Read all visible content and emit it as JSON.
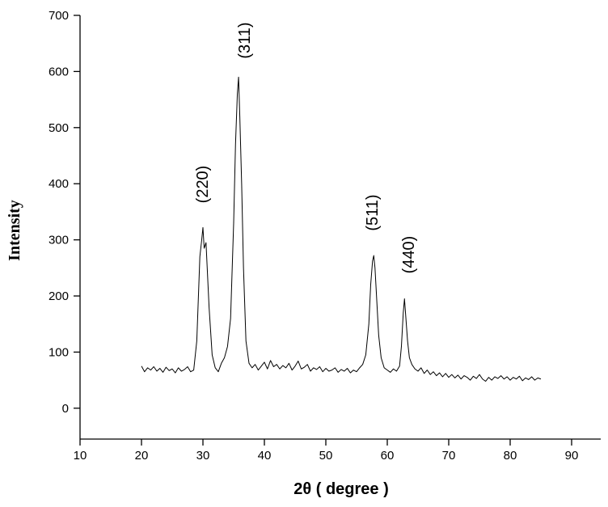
{
  "chart_data": {
    "type": "line",
    "xlabel": "2θ ( degree )",
    "ylabel": "Intensity",
    "annotations": [
      "(220)",
      "(311)",
      "(511)",
      "(440)"
    ],
    "xlim": [
      10,
      95
    ],
    "xticks": [
      10,
      20,
      30,
      40,
      50,
      60,
      70,
      80,
      90
    ],
    "ylim": [
      -55,
      700
    ],
    "yticks": [
      0,
      100,
      200,
      300,
      400,
      500,
      600,
      700
    ],
    "x": [
      20,
      20.5,
      21,
      21.5,
      22,
      22.5,
      23,
      23.5,
      24,
      24.5,
      25,
      25.5,
      26,
      26.5,
      27,
      27.5,
      28,
      28.5,
      29,
      29.5,
      29.8,
      30,
      30.2,
      30.5,
      31,
      31.5,
      32,
      32.5,
      33,
      33.5,
      34,
      34.5,
      35,
      35.3,
      35.6,
      35.8,
      36,
      36.3,
      36.6,
      37,
      37.5,
      38,
      38.5,
      39,
      39.5,
      40,
      40.5,
      41,
      41.5,
      42,
      42.5,
      43,
      43.5,
      44,
      44.5,
      45,
      45.5,
      46,
      46.5,
      47,
      47.5,
      48,
      48.5,
      49,
      49.5,
      50,
      50.5,
      51,
      51.5,
      52,
      52.5,
      53,
      53.5,
      54,
      54.5,
      55,
      55.5,
      56,
      56.5,
      57,
      57.3,
      57.6,
      57.8,
      58,
      58.3,
      58.6,
      59,
      59.5,
      60,
      60.5,
      61,
      61.5,
      62,
      62.3,
      62.6,
      62.8,
      63,
      63.3,
      63.6,
      64,
      64.5,
      65,
      65.5,
      66,
      66.5,
      67,
      67.5,
      68,
      68.5,
      69,
      69.5,
      70,
      70.5,
      71,
      71.5,
      72,
      72.5,
      73,
      73.5,
      74,
      74.5,
      75,
      75.5,
      76,
      76.5,
      77,
      77.5,
      78,
      78.5,
      79,
      79.5,
      80,
      80.5,
      81,
      81.5,
      82,
      82.5,
      83,
      83.5,
      84,
      84.5,
      85
    ],
    "series": [
      {
        "color": "#000000",
        "values": [
          75,
          65,
          72,
          68,
          74,
          66,
          71,
          64,
          73,
          67,
          70,
          63,
          72,
          66,
          69,
          74,
          65,
          68,
          120,
          270,
          300,
          322,
          285,
          295,
          180,
          95,
          72,
          65,
          80,
          90,
          110,
          160,
          330,
          470,
          560,
          590,
          520,
          400,
          250,
          120,
          80,
          72,
          78,
          68,
          75,
          82,
          70,
          85,
          74,
          78,
          70,
          76,
          72,
          80,
          68,
          75,
          84,
          70,
          73,
          78,
          66,
          72,
          69,
          74,
          65,
          71,
          66,
          68,
          72,
          64,
          69,
          66,
          71,
          63,
          68,
          65,
          72,
          78,
          95,
          150,
          220,
          262,
          272,
          250,
          190,
          130,
          90,
          72,
          68,
          64,
          70,
          66,
          75,
          110,
          170,
          195,
          165,
          120,
          90,
          78,
          70,
          66,
          72,
          62,
          68,
          60,
          65,
          58,
          63,
          56,
          62,
          55,
          60,
          54,
          59,
          52,
          58,
          55,
          50,
          57,
          53,
          60,
          52,
          48,
          55,
          50,
          56,
          53,
          58,
          52,
          56,
          50,
          55,
          52,
          57,
          49,
          54,
          51,
          56,
          50,
          54,
          52
        ]
      }
    ]
  }
}
